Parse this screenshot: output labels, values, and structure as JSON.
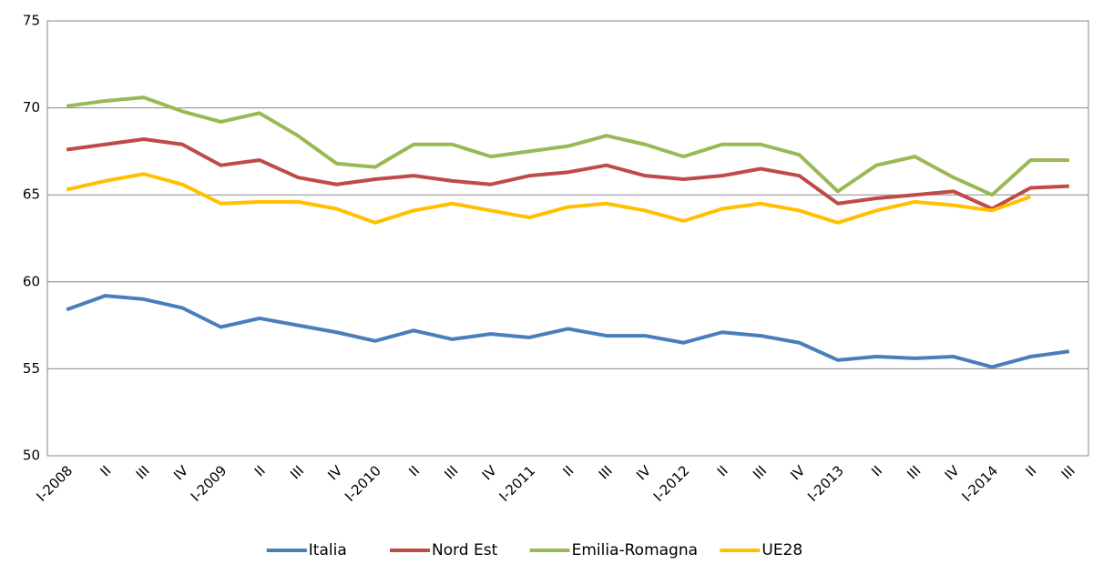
{
  "chart_data": {
    "type": "line",
    "categories": [
      "I-2008",
      "II",
      "III",
      "IV",
      "I-2009",
      "II",
      "III",
      "IV",
      "I-2010",
      "II",
      "III",
      "IV",
      "I-2011",
      "II",
      "III",
      "IV",
      "I-2012",
      "II",
      "III",
      "IV",
      "I-2013",
      "II",
      "III",
      "IV",
      "I-2014",
      "II",
      "III"
    ],
    "series": [
      {
        "name": "Italia",
        "color": "#4a7ebb",
        "values": [
          58.4,
          59.2,
          59.0,
          58.5,
          57.4,
          57.9,
          57.5,
          57.1,
          56.6,
          57.2,
          56.7,
          57.0,
          56.8,
          57.3,
          56.9,
          56.9,
          56.5,
          57.1,
          56.9,
          56.5,
          55.5,
          55.7,
          55.6,
          55.7,
          55.1,
          55.7,
          56.0
        ]
      },
      {
        "name": "Nord Est",
        "color": "#be4b48",
        "values": [
          67.6,
          67.9,
          68.2,
          67.9,
          66.7,
          67.0,
          66.0,
          65.6,
          65.9,
          66.1,
          65.8,
          65.6,
          66.1,
          66.3,
          66.7,
          66.1,
          65.9,
          66.1,
          66.5,
          66.1,
          64.5,
          64.8,
          65.0,
          65.2,
          64.2,
          65.4,
          65.5
        ]
      },
      {
        "name": "Emilia-Romagna",
        "color": "#98b954",
        "values": [
          70.1,
          70.4,
          70.6,
          69.8,
          69.2,
          69.7,
          68.4,
          66.8,
          66.6,
          67.9,
          67.9,
          67.2,
          67.5,
          67.8,
          68.4,
          67.9,
          67.2,
          67.9,
          67.9,
          67.3,
          65.2,
          66.7,
          67.2,
          66.0,
          65.0,
          67.0,
          67.0
        ]
      },
      {
        "name": "UE28",
        "color": "#ffc000",
        "values": [
          65.3,
          65.8,
          66.2,
          65.6,
          64.5,
          64.6,
          64.6,
          64.2,
          63.4,
          64.1,
          64.5,
          64.1,
          63.7,
          64.3,
          64.5,
          64.1,
          63.5,
          64.2,
          64.5,
          64.1,
          63.4,
          64.1,
          64.6,
          64.4,
          64.1,
          64.9,
          null
        ]
      }
    ],
    "ylim": [
      50,
      75
    ],
    "yticks": [
      50,
      55,
      60,
      65,
      70,
      75
    ],
    "grid": true,
    "legend": "bottom"
  }
}
